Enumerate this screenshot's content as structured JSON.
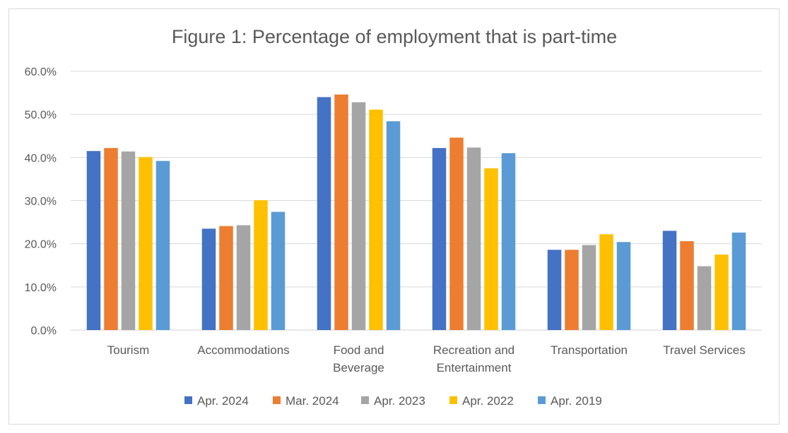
{
  "chart_data": {
    "type": "bar",
    "title": "Figure 1: Percentage of employment that is part-time",
    "xlabel": "",
    "ylabel": "",
    "ylim": [
      0,
      60
    ],
    "yticks": [
      "0.0%",
      "10.0%",
      "20.0%",
      "30.0%",
      "40.0%",
      "50.0%",
      "60.0%"
    ],
    "categories": [
      [
        "Tourism"
      ],
      [
        "Accommodations"
      ],
      [
        "Food and",
        "Beverage"
      ],
      [
        "Recreation and",
        "Entertainment"
      ],
      [
        "Transportation"
      ],
      [
        "Travel Services"
      ]
    ],
    "series": [
      {
        "name": "Apr. 2024",
        "color": "#4472c4",
        "values": [
          41.5,
          23.5,
          54.0,
          42.2,
          18.6,
          23.0
        ]
      },
      {
        "name": "Mar. 2024",
        "color": "#ed7d31",
        "values": [
          42.2,
          24.1,
          54.6,
          44.6,
          18.6,
          20.6
        ]
      },
      {
        "name": "Apr. 2023",
        "color": "#a5a5a5",
        "values": [
          41.4,
          24.3,
          52.8,
          42.3,
          19.7,
          14.8
        ]
      },
      {
        "name": "Apr. 2022",
        "color": "#ffc000",
        "values": [
          40.1,
          30.1,
          51.1,
          37.5,
          22.2,
          17.5
        ]
      },
      {
        "name": "Apr. 2019",
        "color": "#5b9bd5",
        "values": [
          39.2,
          27.4,
          48.4,
          41.0,
          20.4,
          22.6
        ]
      }
    ],
    "grid": true,
    "legend_position": "bottom"
  }
}
